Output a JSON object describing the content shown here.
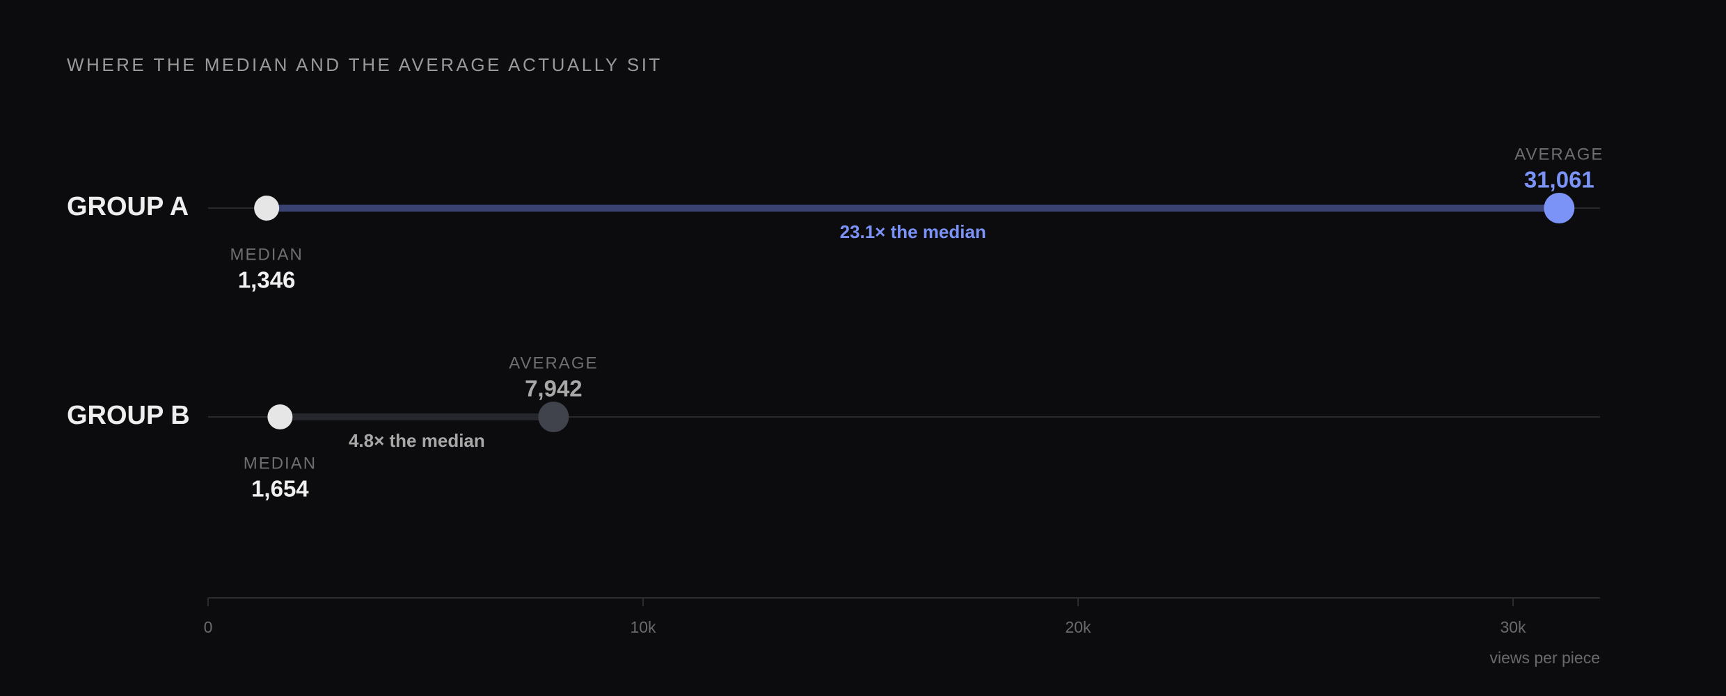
{
  "chart_data": {
    "type": "dumbbell",
    "title": "WHERE THE MEDIAN AND THE AVERAGE ACTUALLY SIT",
    "categories": [
      "GROUP A",
      "GROUP B"
    ],
    "series": [
      {
        "name": "MEDIAN",
        "color": "#e6e6e6",
        "values": [
          1346,
          1654
        ],
        "value_labels": [
          "1,346",
          "1,654"
        ]
      },
      {
        "name": "AVERAGE",
        "colors": [
          "#7b93f6",
          "#40434b"
        ],
        "values": [
          31061,
          7942
        ],
        "value_labels": [
          "31,061",
          "7,942"
        ]
      }
    ],
    "ratio_labels": [
      "23.1× the median",
      "4.8× the median"
    ],
    "highlight_colors": [
      "#7b93f6",
      "#a8a8a8"
    ],
    "bar_colors": [
      "#394270",
      "#25272c"
    ],
    "xlim": [
      0,
      32000
    ],
    "xticks": [
      0,
      {
        "value": 10000,
        "label": "10k"
      },
      {
        "value": 20000,
        "label": "20k"
      },
      {
        "value": 30000,
        "label": "30k"
      }
    ],
    "xlabel": "views per piece"
  }
}
